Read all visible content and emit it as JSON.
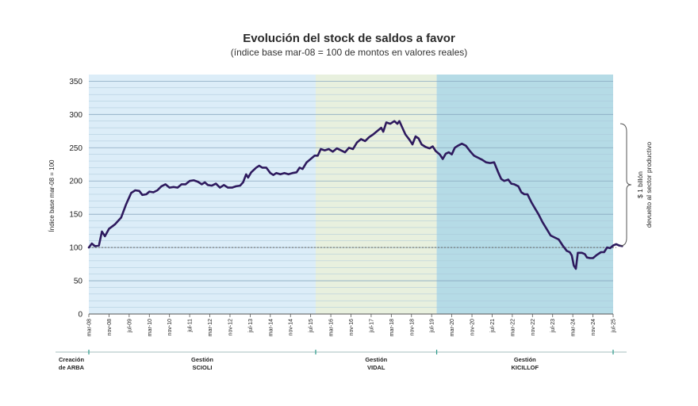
{
  "chart_data": {
    "type": "line",
    "title": "Evolución del stock de saldos a favor",
    "subtitle": "(índice base mar-08 = 100 de montos en valores reales)",
    "ylabel": "Índice base mar-08 = 100",
    "ylim": [
      0,
      360
    ],
    "yticks": [
      0,
      50,
      100,
      150,
      200,
      250,
      300,
      350
    ],
    "reference_line": 100,
    "xticks": [
      "mar-08",
      "nov-08",
      "jul-09",
      "mar-10",
      "nov-10",
      "jul-11",
      "mar-12",
      "nov-12",
      "jul-13",
      "mar-14",
      "nov-14",
      "jul-15",
      "mar-16",
      "nov-16",
      "jul-17",
      "mar-18",
      "nov-18",
      "jul-19",
      "mar-20",
      "nov-20",
      "jul-21",
      "mar-22",
      "nov-22",
      "jul-23",
      "mar-24",
      "nov-24",
      "jul-25"
    ],
    "periods": [
      {
        "label_line1": "Creación",
        "label_line2": "de ARBA",
        "color": "#ffffff"
      },
      {
        "label_line1": "Gestión",
        "label_line2": "SCIOLI",
        "color": "#dcedf8",
        "start_index": 0,
        "end_index": 11.25
      },
      {
        "label_line1": "Gestión",
        "label_line2": "VIDAL",
        "color": "#e8f0de",
        "start_index": 11.25,
        "end_index": 17.25
      },
      {
        "label_line1": "Gestión",
        "label_line2": "KICILLOF",
        "color": "#b5dbe6",
        "start_index": 17.25,
        "end_index": 26
      }
    ],
    "annotation": "$ 1 billón devuelto al sector productivo",
    "series": [
      {
        "color": "#2e1a5e",
        "points": [
          [
            0,
            100
          ],
          [
            0.15,
            106
          ],
          [
            0.3,
            102
          ],
          [
            0.5,
            103
          ],
          [
            0.65,
            124
          ],
          [
            0.8,
            117
          ],
          [
            1.0,
            128
          ],
          [
            1.3,
            135
          ],
          [
            1.6,
            145
          ],
          [
            1.85,
            165
          ],
          [
            2.1,
            182
          ],
          [
            2.3,
            186
          ],
          [
            2.5,
            185
          ],
          [
            2.65,
            179
          ],
          [
            2.85,
            180
          ],
          [
            3.0,
            184
          ],
          [
            3.2,
            183
          ],
          [
            3.4,
            186
          ],
          [
            3.6,
            192
          ],
          [
            3.8,
            195
          ],
          [
            4.0,
            190
          ],
          [
            4.2,
            191
          ],
          [
            4.4,
            190
          ],
          [
            4.6,
            195
          ],
          [
            4.8,
            195
          ],
          [
            5.0,
            200
          ],
          [
            5.2,
            201
          ],
          [
            5.4,
            199
          ],
          [
            5.6,
            195
          ],
          [
            5.75,
            198
          ],
          [
            5.9,
            194
          ],
          [
            6.1,
            193
          ],
          [
            6.3,
            196
          ],
          [
            6.5,
            190
          ],
          [
            6.7,
            194
          ],
          [
            6.9,
            190
          ],
          [
            7.1,
            190
          ],
          [
            7.3,
            192
          ],
          [
            7.5,
            193
          ],
          [
            7.65,
            198
          ],
          [
            7.8,
            210
          ],
          [
            7.9,
            205
          ],
          [
            8.05,
            213
          ],
          [
            8.3,
            220
          ],
          [
            8.45,
            223
          ],
          [
            8.6,
            220
          ],
          [
            8.8,
            220
          ],
          [
            9.0,
            212
          ],
          [
            9.15,
            209
          ],
          [
            9.3,
            212
          ],
          [
            9.5,
            210
          ],
          [
            9.7,
            212
          ],
          [
            9.9,
            210
          ],
          [
            10.1,
            212
          ],
          [
            10.3,
            213
          ],
          [
            10.45,
            220
          ],
          [
            10.6,
            218
          ],
          [
            10.8,
            228
          ],
          [
            11.0,
            233
          ],
          [
            11.2,
            238
          ],
          [
            11.35,
            238
          ],
          [
            11.5,
            248
          ],
          [
            11.7,
            246
          ],
          [
            11.9,
            248
          ],
          [
            12.1,
            244
          ],
          [
            12.3,
            249
          ],
          [
            12.5,
            246
          ],
          [
            12.7,
            243
          ],
          [
            12.9,
            250
          ],
          [
            13.1,
            248
          ],
          [
            13.3,
            258
          ],
          [
            13.5,
            263
          ],
          [
            13.7,
            260
          ],
          [
            13.9,
            266
          ],
          [
            14.1,
            270
          ],
          [
            14.3,
            275
          ],
          [
            14.5,
            280
          ],
          [
            14.6,
            274
          ],
          [
            14.75,
            288
          ],
          [
            14.95,
            286
          ],
          [
            15.15,
            290
          ],
          [
            15.3,
            286
          ],
          [
            15.4,
            290
          ],
          [
            15.55,
            280
          ],
          [
            15.7,
            270
          ],
          [
            15.9,
            262
          ],
          [
            16.05,
            255
          ],
          [
            16.2,
            267
          ],
          [
            16.35,
            264
          ],
          [
            16.5,
            255
          ],
          [
            16.7,
            251
          ],
          [
            16.9,
            249
          ],
          [
            17.05,
            252
          ],
          [
            17.2,
            245
          ],
          [
            17.4,
            240
          ],
          [
            17.55,
            233
          ],
          [
            17.7,
            241
          ],
          [
            17.85,
            243
          ],
          [
            18.0,
            240
          ],
          [
            18.15,
            250
          ],
          [
            18.3,
            253
          ],
          [
            18.5,
            256
          ],
          [
            18.7,
            253
          ],
          [
            18.9,
            245
          ],
          [
            19.1,
            238
          ],
          [
            19.3,
            235
          ],
          [
            19.5,
            232
          ],
          [
            19.7,
            228
          ],
          [
            19.9,
            227
          ],
          [
            20.1,
            228
          ],
          [
            20.3,
            213
          ],
          [
            20.45,
            203
          ],
          [
            20.6,
            200
          ],
          [
            20.8,
            202
          ],
          [
            20.95,
            196
          ],
          [
            21.1,
            195
          ],
          [
            21.3,
            192
          ],
          [
            21.45,
            183
          ],
          [
            21.6,
            180
          ],
          [
            21.75,
            180
          ],
          [
            21.95,
            168
          ],
          [
            22.1,
            160
          ],
          [
            22.3,
            150
          ],
          [
            22.5,
            138
          ],
          [
            22.7,
            128
          ],
          [
            22.9,
            118
          ],
          [
            23.1,
            115
          ],
          [
            23.3,
            112
          ],
          [
            23.5,
            103
          ],
          [
            23.7,
            95
          ],
          [
            23.85,
            93
          ],
          [
            23.95,
            88
          ],
          [
            24.05,
            73
          ],
          [
            24.15,
            68
          ],
          [
            24.25,
            92
          ],
          [
            24.45,
            92
          ],
          [
            24.6,
            90
          ],
          [
            24.7,
            85
          ],
          [
            24.85,
            84
          ],
          [
            25.0,
            84
          ],
          [
            25.2,
            89
          ],
          [
            25.4,
            93
          ],
          [
            25.55,
            93
          ],
          [
            25.7,
            100
          ],
          [
            25.85,
            99
          ],
          [
            26.0,
            103
          ],
          [
            26.15,
            105
          ],
          [
            26.3,
            103
          ],
          [
            26.45,
            102
          ]
        ]
      }
    ]
  }
}
